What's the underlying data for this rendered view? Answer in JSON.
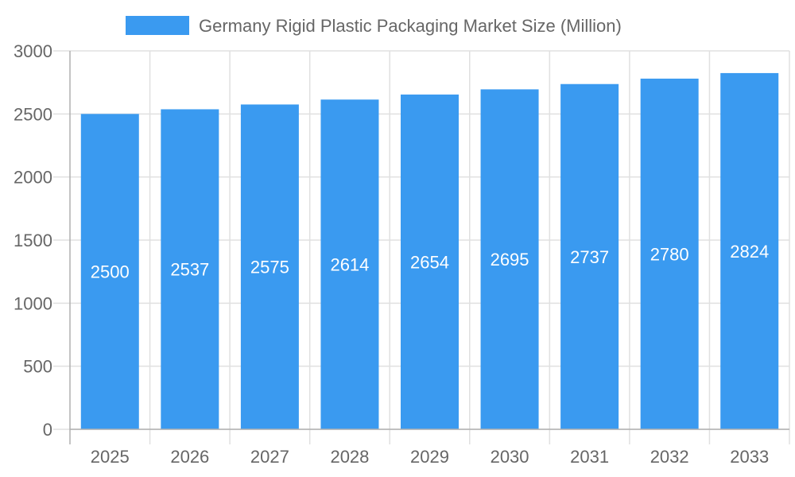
{
  "chart_data": {
    "type": "bar",
    "title": "",
    "xlabel": "",
    "ylabel": "",
    "categories": [
      "2025",
      "2026",
      "2027",
      "2028",
      "2029",
      "2030",
      "2031",
      "2032",
      "2033"
    ],
    "series": [
      {
        "name": "Germany Rigid Plastic Packaging Market Size (Million)",
        "values": [
          2500,
          2537,
          2575,
          2614,
          2654,
          2695,
          2737,
          2780,
          2824
        ],
        "color": "#3a9af0"
      }
    ],
    "ylim": [
      0,
      3000
    ],
    "yticks": [
      "0",
      "500",
      "1000",
      "1500",
      "2000",
      "2500",
      "3000"
    ],
    "grid": true,
    "legend": "top-center",
    "data_labels": true
  }
}
